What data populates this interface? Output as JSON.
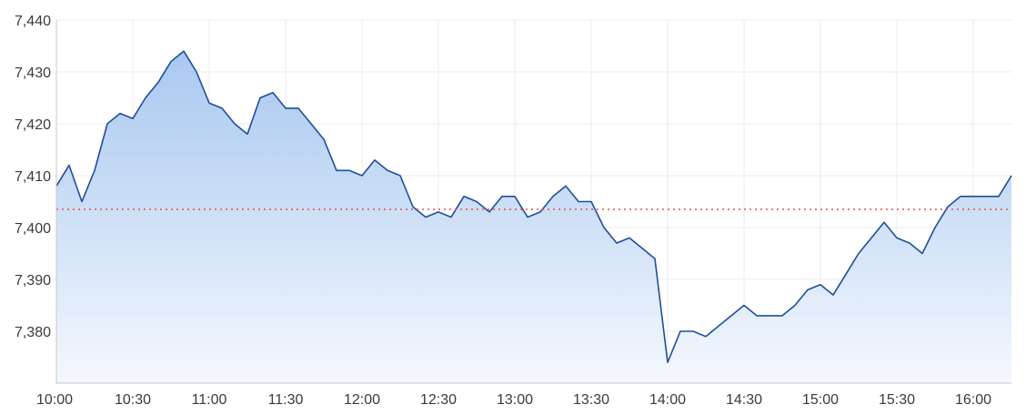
{
  "chart_data": {
    "type": "area",
    "title": "",
    "xlabel": "",
    "ylabel": "",
    "ylim": [
      7370,
      7440
    ],
    "x_ticks": [
      "10:00",
      "10:30",
      "11:00",
      "11:30",
      "12:00",
      "12:30",
      "13:00",
      "13:30",
      "14:00",
      "14:30",
      "15:00",
      "15:30",
      "16:00"
    ],
    "y_ticks": [
      "7,440",
      "7,430",
      "7,420",
      "7,410",
      "7,400",
      "7,390",
      "7,380"
    ],
    "y_tick_values": [
      7440,
      7430,
      7420,
      7410,
      7400,
      7390,
      7380
    ],
    "reference_line": 7403.5,
    "grid": true,
    "colors": {
      "line": "#1f4e9a",
      "fill_top": "#a9c8f0",
      "fill_bottom": "#f4f8fd",
      "reference": "#e05050",
      "grid": "#ebebeb",
      "axis": "#3a3a3a"
    },
    "series": [
      {
        "x": [
          "10:00",
          "10:05",
          "10:10",
          "10:15",
          "10:20",
          "10:25",
          "10:30",
          "10:35",
          "10:40",
          "10:45",
          "10:50",
          "10:55",
          "11:00",
          "11:05",
          "11:10",
          "11:15",
          "11:20",
          "11:25",
          "11:30",
          "11:35",
          "11:40",
          "11:45",
          "11:50",
          "11:55",
          "12:00",
          "12:05",
          "12:10",
          "12:15",
          "12:20",
          "12:25",
          "12:30",
          "12:35",
          "12:40",
          "12:45",
          "12:50",
          "12:55",
          "13:00",
          "13:05",
          "13:10",
          "13:15",
          "13:20",
          "13:25",
          "13:30",
          "13:35",
          "13:40",
          "13:45",
          "13:50",
          "13:55",
          "14:00",
          "14:05",
          "14:10",
          "14:15",
          "14:20",
          "14:25",
          "14:30",
          "14:35",
          "14:40",
          "14:45",
          "14:50",
          "14:55",
          "15:00",
          "15:05",
          "15:10",
          "15:15",
          "15:20",
          "15:25",
          "15:30",
          "15:35",
          "15:40",
          "15:45",
          "15:50",
          "15:55",
          "16:00",
          "16:05",
          "16:10",
          "16:15"
        ],
        "values": [
          7408,
          7412,
          7405,
          7411,
          7420,
          7422,
          7421,
          7425,
          7428,
          7432,
          7434,
          7430,
          7424,
          7423,
          7420,
          7418,
          7425,
          7426,
          7423,
          7423,
          7420,
          7417,
          7411,
          7411,
          7410,
          7413,
          7411,
          7410,
          7404,
          7402,
          7403,
          7402,
          7406,
          7405,
          7403,
          7406,
          7406,
          7402,
          7403,
          7406,
          7408,
          7405,
          7405,
          7400,
          7397,
          7398,
          7396,
          7394,
          7374,
          7380,
          7380,
          7379,
          7381,
          7383,
          7385,
          7383,
          7383,
          7383,
          7385,
          7388,
          7389,
          7387,
          7391,
          7395,
          7398,
          7401,
          7398,
          7397,
          7395,
          7400,
          7404,
          7406,
          7406,
          7406,
          7406,
          7410
        ]
      }
    ]
  }
}
